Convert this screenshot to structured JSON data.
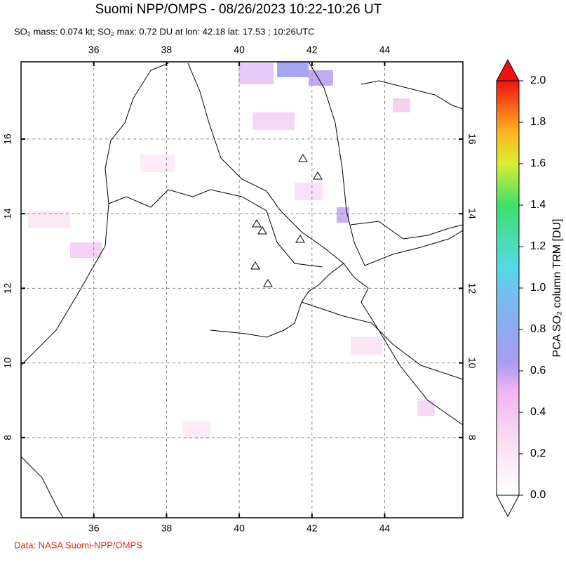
{
  "header": {
    "title": "Suomi NPP/OMPS - 08/26/2023 10:22-10:26 UT",
    "subtitle": "SO₂ mass: 0.074 kt; SO₂ max: 0.72 DU at lon: 42.18 lat: 17.53 ; 10:26UTC"
  },
  "map": {
    "xlim": [
      34.0,
      46.15
    ],
    "ylim": [
      5.85,
      18.07
    ],
    "xticks": [
      36,
      38,
      40,
      42,
      44
    ],
    "yticks": [
      8,
      10,
      12,
      14,
      16
    ]
  },
  "colorbar": {
    "label": "PCA SO₂ column TRM [DU]",
    "lim": [
      0,
      2
    ],
    "ticks": [
      {
        "value": 0,
        "label": "0.0"
      },
      {
        "value": 0.2,
        "label": "0.2"
      },
      {
        "value": 0.4,
        "label": "0.4"
      },
      {
        "value": 0.6,
        "label": "0.6"
      },
      {
        "value": 0.8,
        "label": "0.8"
      },
      {
        "value": 1.0,
        "label": "1.0"
      },
      {
        "value": 1.2,
        "label": "1.2"
      },
      {
        "value": 1.4,
        "label": "1.4"
      },
      {
        "value": 1.6,
        "label": "1.6"
      },
      {
        "value": 1.8,
        "label": "1.8"
      },
      {
        "value": 2.0,
        "label": "2.0"
      }
    ]
  },
  "footer": {
    "credit": "Data: NASA Suomi-NPP/OMPS"
  }
}
